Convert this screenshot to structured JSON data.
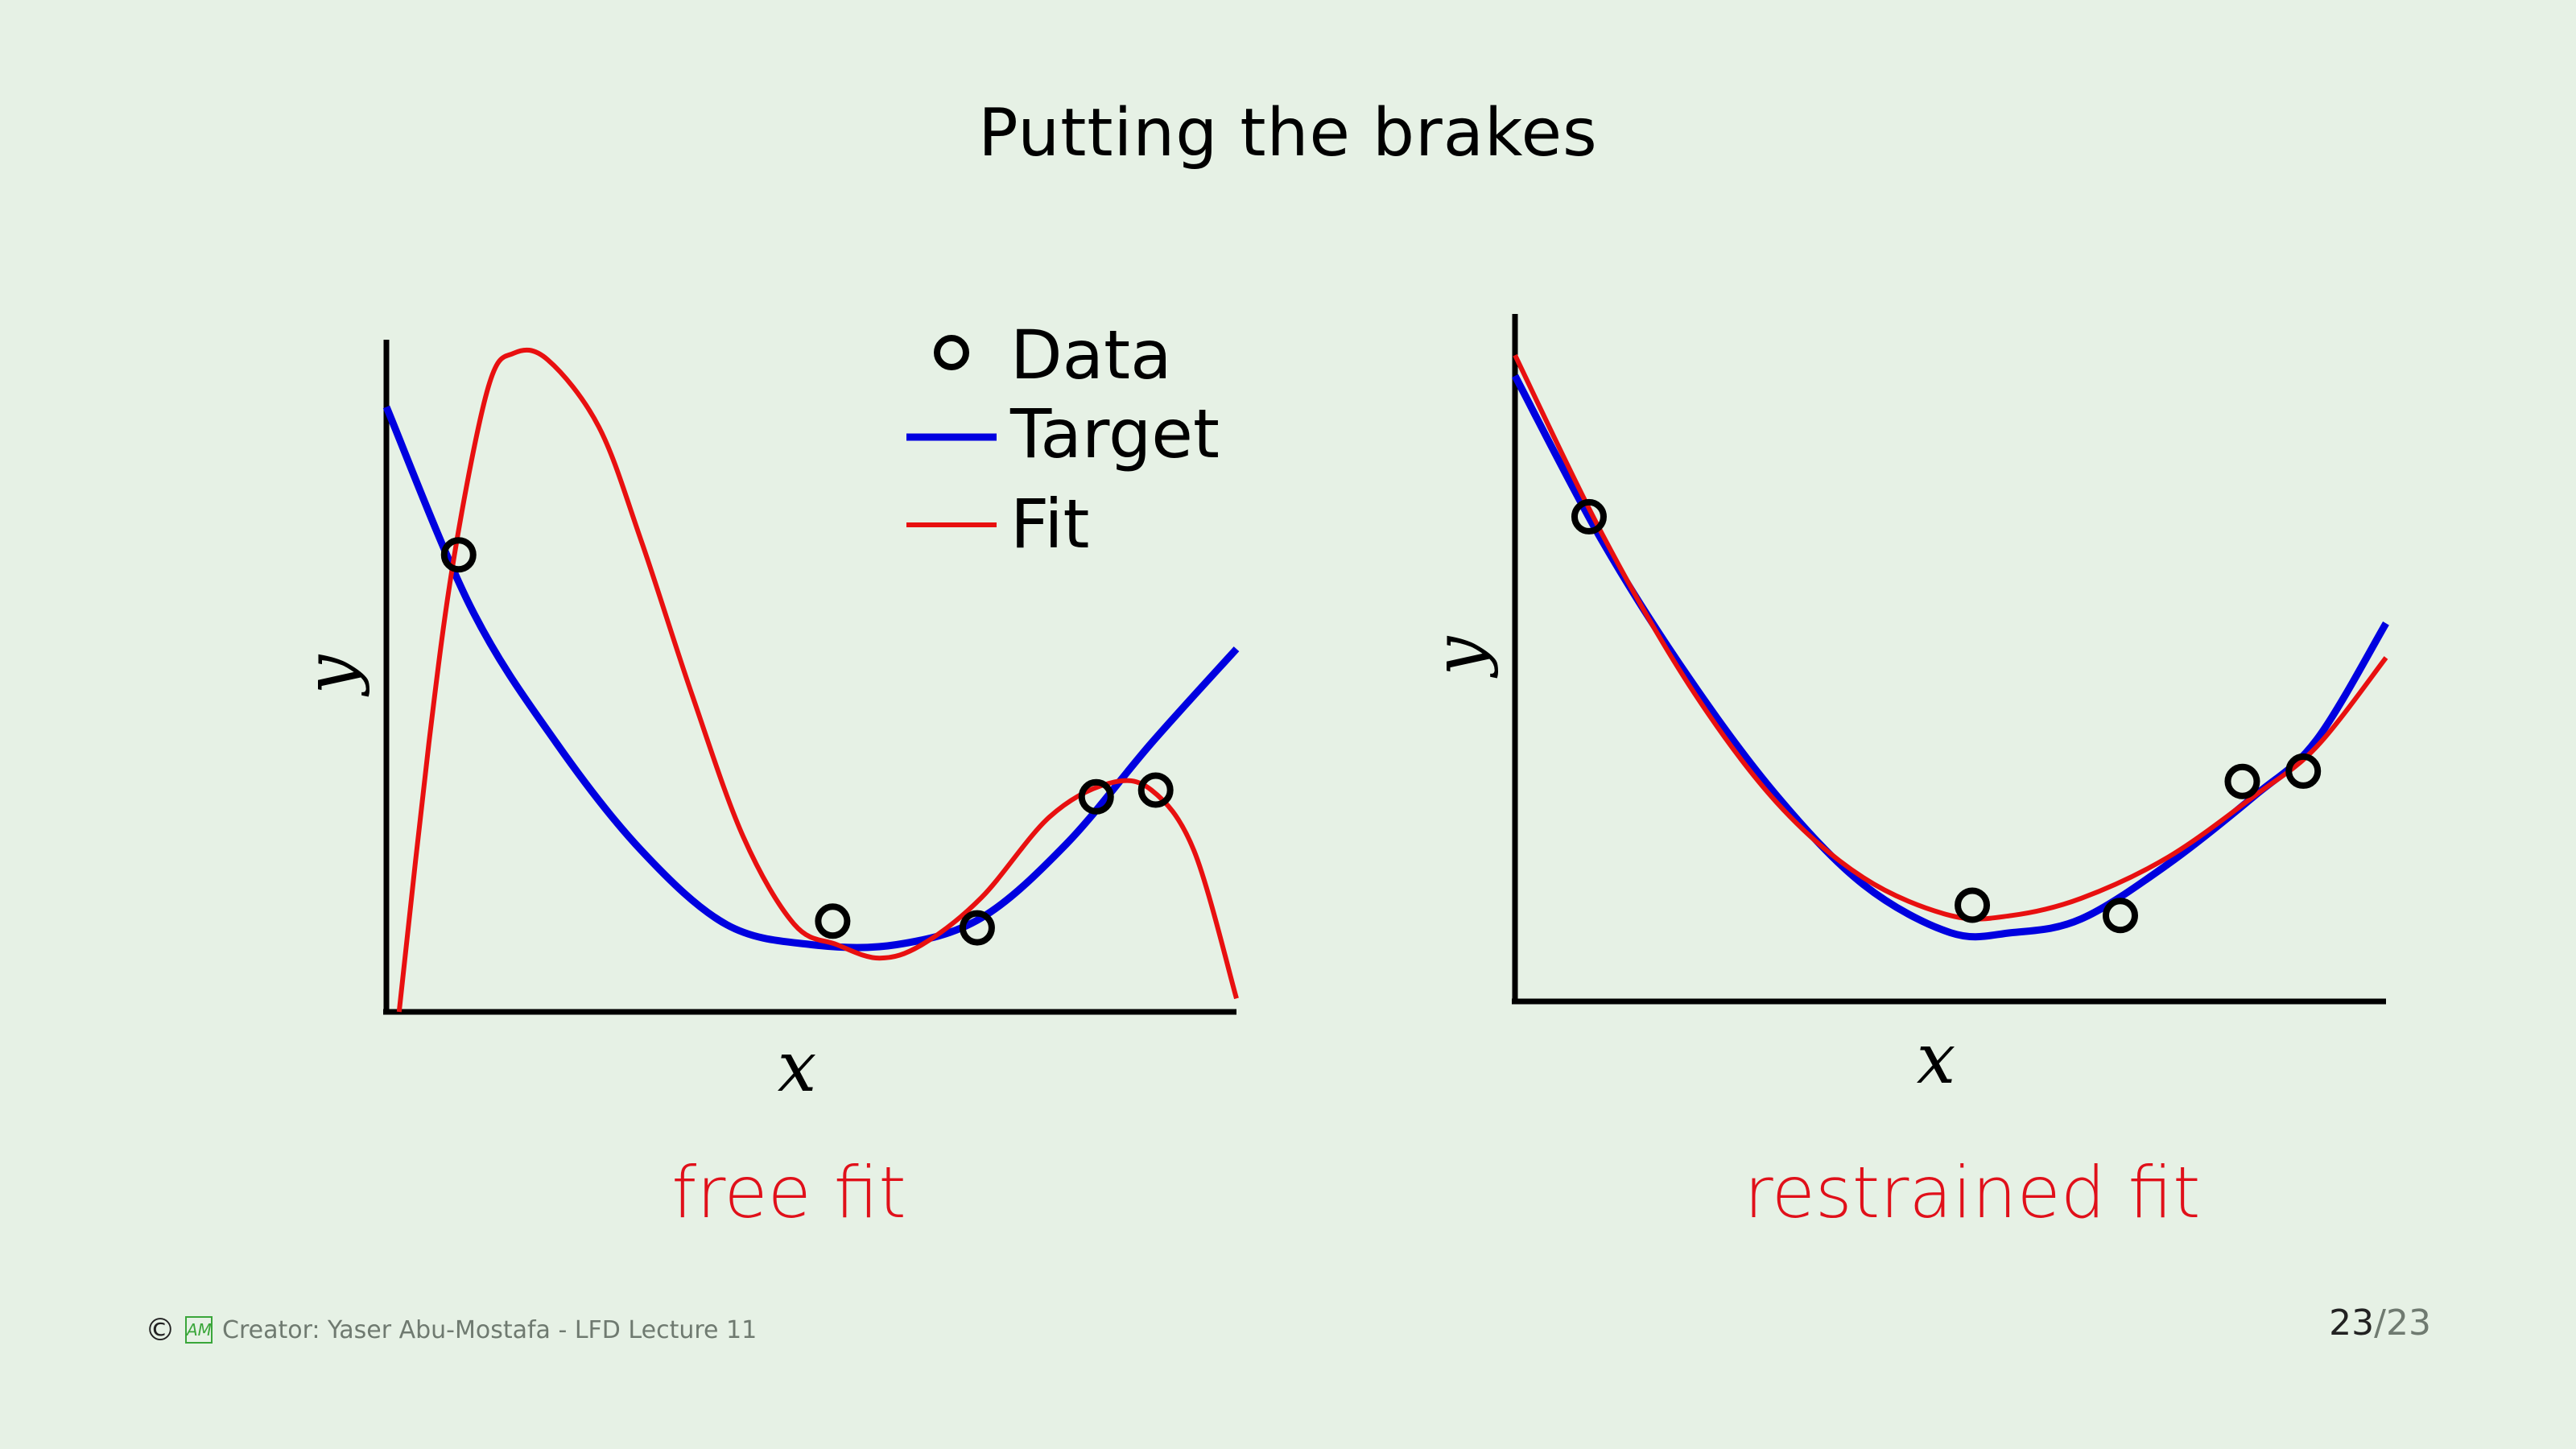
{
  "slide": {
    "title": "Putting the brakes",
    "page_current": "23",
    "page_separator": "/",
    "page_total": "23"
  },
  "footer": {
    "copyright_symbol": "©",
    "logo_text": "AM",
    "credit": "Creator: Yaser Abu-Mostafa - LFD Lecture 11"
  },
  "colors": {
    "target": "#0000e0",
    "fit": "#e81010",
    "data": "#000000",
    "caption": "#e0101a",
    "background": "#e6f1e5"
  },
  "legend": {
    "data": "Data",
    "target": "Target",
    "fit": "Fit"
  },
  "panels": [
    {
      "id": "free",
      "caption": "free fit",
      "xlabel": "x",
      "ylabel": "y"
    },
    {
      "id": "restrained",
      "caption": "restrained fit",
      "xlabel": "x",
      "ylabel": "y"
    }
  ],
  "chart_data": [
    {
      "type": "line",
      "title": "",
      "xlabel": "x",
      "ylabel": "y",
      "xlim": [
        0,
        1
      ],
      "ylim": [
        0,
        1
      ],
      "series": [
        {
          "name": "Target",
          "x": [
            0,
            0.1,
            0.2,
            0.3,
            0.4,
            0.5,
            0.6,
            0.7,
            0.8,
            0.9,
            1.0
          ],
          "y": [
            0.9,
            0.6,
            0.4,
            0.24,
            0.13,
            0.1,
            0.1,
            0.14,
            0.25,
            0.4,
            0.54
          ]
        },
        {
          "name": "Fit",
          "x": [
            0.015,
            0.05,
            0.08,
            0.12,
            0.15,
            0.19,
            0.25,
            0.3,
            0.36,
            0.42,
            0.48,
            0.53,
            0.58,
            0.63,
            0.7,
            0.78,
            0.85,
            0.9,
            0.95,
            1.0
          ],
          "y": [
            0.0,
            0.4,
            0.68,
            0.93,
            0.98,
            0.97,
            0.87,
            0.7,
            0.47,
            0.26,
            0.13,
            0.1,
            0.08,
            0.1,
            0.17,
            0.29,
            0.34,
            0.33,
            0.24,
            0.02
          ]
        }
      ],
      "points": {
        "name": "Data",
        "x": [
          0.085,
          0.525,
          0.695,
          0.835,
          0.905
        ],
        "y": [
          0.68,
          0.135,
          0.125,
          0.32,
          0.33
        ]
      }
    },
    {
      "type": "line",
      "title": "",
      "xlabel": "x",
      "ylabel": "y",
      "xlim": [
        0,
        1
      ],
      "ylim": [
        0,
        1
      ],
      "series": [
        {
          "name": "Target",
          "x": [
            0,
            0.1,
            0.2,
            0.3,
            0.4,
            0.5,
            0.57,
            0.65,
            0.75,
            0.85,
            0.92,
            1.0
          ],
          "y": [
            0.91,
            0.67,
            0.47,
            0.3,
            0.17,
            0.1,
            0.1,
            0.12,
            0.2,
            0.3,
            0.38,
            0.55
          ]
        },
        {
          "name": "Fit",
          "x": [
            0,
            0.1,
            0.2,
            0.3,
            0.4,
            0.5,
            0.57,
            0.65,
            0.75,
            0.85,
            0.92,
            1.0
          ],
          "y": [
            0.94,
            0.68,
            0.46,
            0.29,
            0.18,
            0.125,
            0.125,
            0.15,
            0.21,
            0.3,
            0.37,
            0.5
          ]
        }
      ],
      "points": {
        "name": "Data",
        "x": [
          0.085,
          0.525,
          0.695,
          0.835,
          0.905
        ],
        "y": [
          0.705,
          0.14,
          0.125,
          0.32,
          0.335
        ]
      }
    }
  ]
}
